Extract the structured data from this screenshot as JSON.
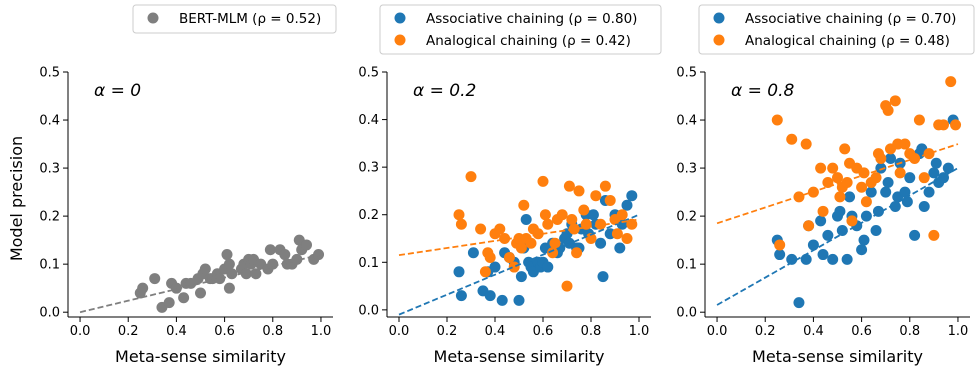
{
  "chart_data": [
    {
      "type": "scatter",
      "annotation": "α = 0",
      "xlabel": "Meta-sense similarity",
      "ylabel": "Model precision",
      "xlim": [
        -0.05,
        1.05
      ],
      "ylim": [
        -0.01,
        0.5
      ],
      "xticks": [
        "0.0",
        "0.2",
        "0.4",
        "0.6",
        "0.8",
        "1.0"
      ],
      "yticks": [
        "0.0",
        "0.1",
        "0.2",
        "0.3",
        "0.4",
        "0.5"
      ],
      "legend_placement": "top-center",
      "series": [
        {
          "name": "BERT-MLM (ρ = 0.52)",
          "color": "#7f7f7f",
          "points": [
            [
              0.25,
              0.04
            ],
            [
              0.26,
              0.05
            ],
            [
              0.31,
              0.07
            ],
            [
              0.34,
              0.01
            ],
            [
              0.37,
              0.02
            ],
            [
              0.38,
              0.06
            ],
            [
              0.4,
              0.05
            ],
            [
              0.43,
              0.03
            ],
            [
              0.44,
              0.06
            ],
            [
              0.46,
              0.06
            ],
            [
              0.49,
              0.07
            ],
            [
              0.5,
              0.04
            ],
            [
              0.51,
              0.08
            ],
            [
              0.52,
              0.09
            ],
            [
              0.54,
              0.07
            ],
            [
              0.55,
              0.07
            ],
            [
              0.57,
              0.08
            ],
            [
              0.58,
              0.07
            ],
            [
              0.6,
              0.09
            ],
            [
              0.61,
              0.12
            ],
            [
              0.62,
              0.1
            ],
            [
              0.62,
              0.05
            ],
            [
              0.63,
              0.08
            ],
            [
              0.67,
              0.09
            ],
            [
              0.68,
              0.1
            ],
            [
              0.69,
              0.08
            ],
            [
              0.7,
              0.11
            ],
            [
              0.71,
              0.1
            ],
            [
              0.72,
              0.11
            ],
            [
              0.73,
              0.08
            ],
            [
              0.75,
              0.1
            ],
            [
              0.78,
              0.09
            ],
            [
              0.79,
              0.13
            ],
            [
              0.8,
              0.1
            ],
            [
              0.83,
              0.13
            ],
            [
              0.85,
              0.12
            ],
            [
              0.86,
              0.1
            ],
            [
              0.88,
              0.1
            ],
            [
              0.9,
              0.11
            ],
            [
              0.91,
              0.15
            ],
            [
              0.92,
              0.13
            ],
            [
              0.94,
              0.14
            ],
            [
              0.97,
              0.11
            ],
            [
              0.99,
              0.12
            ]
          ],
          "trend": [
            [
              0.0,
              0.0
            ],
            [
              1.0,
              0.12
            ]
          ]
        }
      ]
    },
    {
      "type": "scatter",
      "annotation": "α = 0.2",
      "xlabel": "Meta-sense similarity",
      "ylabel": "",
      "xlim": [
        -0.05,
        1.05
      ],
      "ylim": [
        -0.015,
        0.5
      ],
      "xticks": [
        "0.0",
        "0.2",
        "0.4",
        "0.6",
        "0.8",
        "1.0"
      ],
      "yticks": [
        "0.0",
        "0.1",
        "0.2",
        "0.3",
        "0.4",
        "0.5"
      ],
      "legend_placement": "top-center",
      "series": [
        {
          "name": "Associative chaining (ρ = 0.80)",
          "color": "#1f77b4",
          "points": [
            [
              0.25,
              0.08
            ],
            [
              0.26,
              0.03
            ],
            [
              0.31,
              0.12
            ],
            [
              0.35,
              0.04
            ],
            [
              0.37,
              0.08
            ],
            [
              0.38,
              0.03
            ],
            [
              0.4,
              0.09
            ],
            [
              0.43,
              0.02
            ],
            [
              0.44,
              0.12
            ],
            [
              0.46,
              0.11
            ],
            [
              0.48,
              0.1
            ],
            [
              0.5,
              0.02
            ],
            [
              0.51,
              0.07
            ],
            [
              0.52,
              0.13
            ],
            [
              0.53,
              0.19
            ],
            [
              0.54,
              0.1
            ],
            [
              0.55,
              0.09
            ],
            [
              0.56,
              0.08
            ],
            [
              0.58,
              0.1
            ],
            [
              0.59,
              0.09
            ],
            [
              0.6,
              0.1
            ],
            [
              0.61,
              0.13
            ],
            [
              0.62,
              0.09
            ],
            [
              0.64,
              0.14
            ],
            [
              0.66,
              0.12
            ],
            [
              0.67,
              0.13
            ],
            [
              0.69,
              0.15
            ],
            [
              0.7,
              0.16
            ],
            [
              0.71,
              0.14
            ],
            [
              0.72,
              0.18
            ],
            [
              0.74,
              0.13
            ],
            [
              0.75,
              0.13
            ],
            [
              0.76,
              0.17
            ],
            [
              0.78,
              0.2
            ],
            [
              0.79,
              0.16
            ],
            [
              0.81,
              0.2
            ],
            [
              0.82,
              0.18
            ],
            [
              0.84,
              0.14
            ],
            [
              0.85,
              0.07
            ],
            [
              0.86,
              0.23
            ],
            [
              0.88,
              0.16
            ],
            [
              0.9,
              0.2
            ],
            [
              0.92,
              0.13
            ],
            [
              0.93,
              0.18
            ],
            [
              0.95,
              0.22
            ],
            [
              0.97,
              0.24
            ]
          ],
          "trend": [
            [
              0.0,
              -0.01
            ],
            [
              1.0,
              0.2
            ]
          ]
        },
        {
          "name": "Analogical chaining (ρ = 0.42)",
          "color": "#ff7f0e",
          "points": [
            [
              0.25,
              0.2
            ],
            [
              0.26,
              0.18
            ],
            [
              0.3,
              0.28
            ],
            [
              0.34,
              0.17
            ],
            [
              0.36,
              0.08
            ],
            [
              0.37,
              0.12
            ],
            [
              0.38,
              0.11
            ],
            [
              0.4,
              0.16
            ],
            [
              0.42,
              0.17
            ],
            [
              0.44,
              0.15
            ],
            [
              0.46,
              0.11
            ],
            [
              0.48,
              0.09
            ],
            [
              0.49,
              0.14
            ],
            [
              0.5,
              0.15
            ],
            [
              0.51,
              0.13
            ],
            [
              0.52,
              0.22
            ],
            [
              0.53,
              0.15
            ],
            [
              0.55,
              0.14
            ],
            [
              0.56,
              0.17
            ],
            [
              0.58,
              0.16
            ],
            [
              0.6,
              0.27
            ],
            [
              0.61,
              0.2
            ],
            [
              0.62,
              0.18
            ],
            [
              0.64,
              0.12
            ],
            [
              0.65,
              0.14
            ],
            [
              0.66,
              0.19
            ],
            [
              0.68,
              0.2
            ],
            [
              0.7,
              0.05
            ],
            [
              0.71,
              0.26
            ],
            [
              0.72,
              0.19
            ],
            [
              0.73,
              0.17
            ],
            [
              0.74,
              0.12
            ],
            [
              0.75,
              0.25
            ],
            [
              0.77,
              0.21
            ],
            [
              0.78,
              0.18
            ],
            [
              0.8,
              0.15
            ],
            [
              0.82,
              0.24
            ],
            [
              0.84,
              0.18
            ],
            [
              0.86,
              0.26
            ],
            [
              0.88,
              0.23
            ],
            [
              0.9,
              0.19
            ],
            [
              0.91,
              0.16
            ],
            [
              0.93,
              0.2
            ],
            [
              0.95,
              0.15
            ],
            [
              0.97,
              0.18
            ]
          ],
          "trend": [
            [
              0.0,
              0.115
            ],
            [
              1.0,
              0.19
            ]
          ]
        }
      ]
    },
    {
      "type": "scatter",
      "annotation": "α = 0.8",
      "xlabel": "Meta-sense similarity",
      "ylabel": "",
      "xlim": [
        -0.05,
        1.05
      ],
      "ylim": [
        -0.01,
        0.5
      ],
      "xticks": [
        "0.0",
        "0.2",
        "0.4",
        "0.6",
        "0.8",
        "1.0"
      ],
      "yticks": [
        "0.0",
        "0.1",
        "0.2",
        "0.3",
        "0.4",
        "0.5"
      ],
      "legend_placement": "top-center",
      "series": [
        {
          "name": "Associative chaining (ρ = 0.70)",
          "color": "#1f77b4",
          "points": [
            [
              0.25,
              0.15
            ],
            [
              0.26,
              0.12
            ],
            [
              0.31,
              0.11
            ],
            [
              0.34,
              0.02
            ],
            [
              0.37,
              0.11
            ],
            [
              0.38,
              0.18
            ],
            [
              0.4,
              0.14
            ],
            [
              0.43,
              0.19
            ],
            [
              0.44,
              0.12
            ],
            [
              0.46,
              0.16
            ],
            [
              0.48,
              0.11
            ],
            [
              0.5,
              0.2
            ],
            [
              0.51,
              0.21
            ],
            [
              0.52,
              0.17
            ],
            [
              0.54,
              0.11
            ],
            [
              0.55,
              0.24
            ],
            [
              0.56,
              0.2
            ],
            [
              0.58,
              0.18
            ],
            [
              0.6,
              0.13
            ],
            [
              0.61,
              0.15
            ],
            [
              0.62,
              0.2
            ],
            [
              0.64,
              0.25
            ],
            [
              0.66,
              0.17
            ],
            [
              0.67,
              0.21
            ],
            [
              0.68,
              0.3
            ],
            [
              0.7,
              0.25
            ],
            [
              0.71,
              0.27
            ],
            [
              0.72,
              0.32
            ],
            [
              0.74,
              0.22
            ],
            [
              0.75,
              0.24
            ],
            [
              0.76,
              0.31
            ],
            [
              0.78,
              0.25
            ],
            [
              0.79,
              0.23
            ],
            [
              0.8,
              0.28
            ],
            [
              0.82,
              0.16
            ],
            [
              0.84,
              0.33
            ],
            [
              0.85,
              0.34
            ],
            [
              0.86,
              0.22
            ],
            [
              0.88,
              0.25
            ],
            [
              0.9,
              0.29
            ],
            [
              0.91,
              0.31
            ],
            [
              0.92,
              0.27
            ],
            [
              0.94,
              0.28
            ],
            [
              0.96,
              0.3
            ],
            [
              0.98,
              0.4
            ]
          ],
          "trend": [
            [
              0.0,
              0.015
            ],
            [
              1.0,
              0.3
            ]
          ]
        },
        {
          "name": "Analogical chaining (ρ = 0.48)",
          "color": "#ff7f0e",
          "points": [
            [
              0.25,
              0.4
            ],
            [
              0.26,
              0.14
            ],
            [
              0.31,
              0.36
            ],
            [
              0.34,
              0.24
            ],
            [
              0.37,
              0.35
            ],
            [
              0.38,
              0.18
            ],
            [
              0.4,
              0.25
            ],
            [
              0.43,
              0.3
            ],
            [
              0.44,
              0.21
            ],
            [
              0.46,
              0.27
            ],
            [
              0.48,
              0.3
            ],
            [
              0.5,
              0.28
            ],
            [
              0.51,
              0.24
            ],
            [
              0.52,
              0.26
            ],
            [
              0.53,
              0.34
            ],
            [
              0.54,
              0.27
            ],
            [
              0.55,
              0.31
            ],
            [
              0.56,
              0.19
            ],
            [
              0.58,
              0.3
            ],
            [
              0.6,
              0.26
            ],
            [
              0.61,
              0.29
            ],
            [
              0.62,
              0.23
            ],
            [
              0.64,
              0.27
            ],
            [
              0.66,
              0.28
            ],
            [
              0.67,
              0.33
            ],
            [
              0.68,
              0.32
            ],
            [
              0.7,
              0.43
            ],
            [
              0.71,
              0.42
            ],
            [
              0.72,
              0.34
            ],
            [
              0.74,
              0.44
            ],
            [
              0.75,
              0.35
            ],
            [
              0.76,
              0.29
            ],
            [
              0.78,
              0.35
            ],
            [
              0.8,
              0.33
            ],
            [
              0.82,
              0.32
            ],
            [
              0.84,
              0.4
            ],
            [
              0.86,
              0.28
            ],
            [
              0.88,
              0.33
            ],
            [
              0.9,
              0.16
            ],
            [
              0.92,
              0.39
            ],
            [
              0.94,
              0.39
            ],
            [
              0.97,
              0.48
            ],
            [
              0.99,
              0.39
            ]
          ],
          "trend": [
            [
              0.0,
              0.185
            ],
            [
              1.0,
              0.35
            ]
          ]
        }
      ]
    }
  ]
}
